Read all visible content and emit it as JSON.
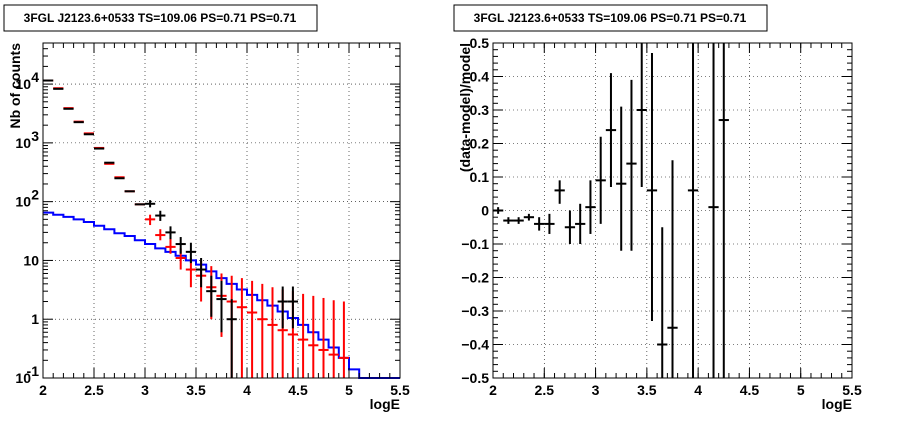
{
  "chart_data": [
    {
      "type": "step-histogram",
      "title": "3FGL J2123.6+0533 TS=109.06 PS=0.71 PS=0.71",
      "xlabel": "logE",
      "ylabel": "Nb of counts",
      "xlim": [
        2,
        5.5
      ],
      "ylim": [
        0.1,
        50000
      ],
      "yscale": "log",
      "grid": true,
      "x_ticks": [
        2,
        2.5,
        3,
        3.5,
        4,
        4.5,
        5,
        5.5
      ],
      "x_tick_labels": [
        "2",
        "2.5",
        "3",
        "3.5",
        "4",
        "4.5",
        "5",
        "5.5"
      ],
      "y_ticks": [
        0.1,
        1,
        10,
        100,
        1000,
        10000
      ],
      "y_tick_labels": [
        {
          "base": "10",
          "exp": "-1"
        },
        {
          "base": "1",
          "exp": ""
        },
        {
          "base": "10",
          "exp": ""
        },
        {
          "base": "10",
          "exp": "2"
        },
        {
          "base": "10",
          "exp": "3"
        },
        {
          "base": "10",
          "exp": "4"
        }
      ],
      "bin_edges": [
        2.0,
        2.1,
        2.2,
        2.3,
        2.4,
        2.5,
        2.6,
        2.7,
        2.8,
        2.9,
        3.0,
        3.1,
        3.2,
        3.3,
        3.4,
        3.5,
        3.6,
        3.7,
        3.8,
        3.9,
        4.0,
        4.1,
        4.2,
        4.3,
        4.4,
        4.5,
        4.6,
        4.7,
        4.8,
        4.9,
        5.0,
        5.1,
        5.2,
        5.3,
        5.4,
        5.5
      ],
      "series": [
        {
          "kind": "step",
          "color": "#0000ff",
          "values": [
            65,
            60,
            55,
            50,
            45,
            39,
            34,
            29,
            26,
            22,
            19,
            16,
            14,
            12,
            10,
            8.5,
            6.5,
            5.0,
            4.0,
            3.2,
            2.6,
            2.1,
            1.7,
            1.35,
            1.05,
            0.8,
            0.6,
            0.45,
            0.33,
            0.22,
            0.14,
            0.1,
            0.1,
            0.1,
            0.1
          ]
        },
        {
          "kind": "errorbar",
          "color": "#ff0000",
          "x": [
            2.05,
            2.15,
            2.25,
            2.35,
            2.45,
            2.55,
            2.65,
            2.75,
            2.85,
            2.95,
            3.05,
            3.15,
            3.25,
            3.35,
            3.45,
            3.55,
            3.65,
            3.75,
            3.85,
            3.95,
            4.05,
            4.15,
            4.25,
            4.35,
            4.45,
            4.55,
            4.65,
            4.75,
            4.85,
            4.95
          ],
          "y": [
            11500,
            8500,
            3900,
            2300,
            1450,
            820,
            440,
            260,
            150,
            90,
            50,
            27,
            17,
            11,
            7,
            5.5,
            3.5,
            2.5,
            2.0,
            1.6,
            1.3,
            1.0,
            0.8,
            0.65,
            0.55,
            0.45,
            0.36,
            0.3,
            0.25,
            0.22
          ],
          "ylo": [
            null,
            null,
            null,
            null,
            null,
            null,
            null,
            null,
            null,
            null,
            40,
            22,
            13,
            7,
            3.5,
            2.0,
            1.0,
            0.5,
            0.1,
            0.1,
            0.1,
            0.1,
            0.1,
            0.1,
            0.1,
            0.1,
            0.1,
            0.1,
            0.1,
            0.1
          ],
          "yhi": [
            null,
            null,
            null,
            null,
            null,
            null,
            null,
            null,
            null,
            null,
            60,
            34,
            24,
            16,
            11,
            10,
            8,
            6,
            5.5,
            5,
            4.5,
            4,
            3.5,
            3.2,
            3,
            2.7,
            2.5,
            2.3,
            2.1,
            2.0
          ]
        },
        {
          "kind": "errorbar",
          "color": "#000000",
          "x": [
            2.05,
            2.15,
            2.25,
            2.35,
            2.45,
            2.55,
            2.65,
            2.75,
            2.85,
            2.95,
            3.05,
            3.15,
            3.25,
            3.35,
            3.45,
            3.55,
            3.65,
            3.75,
            3.85,
            4.35,
            4.45
          ],
          "y": [
            11500,
            8300,
            3800,
            2250,
            1400,
            800,
            460,
            250,
            150,
            90,
            92,
            58,
            30,
            19,
            14,
            7,
            3,
            2.2,
            1.0,
            2.0,
            2.0
          ],
          "ylo": [
            null,
            null,
            null,
            null,
            null,
            null,
            null,
            null,
            null,
            null,
            80,
            47,
            23,
            13,
            9,
            3.5,
            1.1,
            0.6,
            0.1,
            0.7,
            0.7
          ],
          "yhi": [
            null,
            null,
            null,
            null,
            null,
            null,
            null,
            null,
            null,
            null,
            106,
            70,
            38,
            25,
            20,
            11,
            5.5,
            4.5,
            2.2,
            3.6,
            3.6
          ]
        }
      ]
    },
    {
      "type": "errorbar",
      "title": "3FGL J2123.6+0533 TS=109.06 PS=0.71 PS=0.71",
      "xlabel": "logE",
      "ylabel": "(data-model)/model",
      "xlim": [
        2,
        5.5
      ],
      "ylim": [
        -0.5,
        0.5
      ],
      "grid": true,
      "x_ticks": [
        2,
        2.5,
        3,
        3.5,
        4,
        4.5,
        5,
        5.5
      ],
      "x_tick_labels": [
        "2",
        "2.5",
        "3",
        "3.5",
        "4",
        "4.5",
        "5",
        "5.5"
      ],
      "y_ticks": [
        -0.5,
        -0.4,
        -0.3,
        -0.2,
        -0.1,
        0,
        0.1,
        0.2,
        0.3,
        0.4,
        0.5
      ],
      "y_tick_labels": [
        "−0.5",
        "−0.4",
        "−0.3",
        "−0.2",
        "−0.1",
        "0",
        "0.1",
        "0.2",
        "0.3",
        "0.4",
        "0.5"
      ],
      "series": [
        {
          "color": "#000000",
          "x": [
            2.05,
            2.15,
            2.25,
            2.35,
            2.45,
            2.55,
            2.65,
            2.75,
            2.85,
            2.95,
            3.05,
            3.15,
            3.25,
            3.35,
            3.45,
            3.55,
            3.65,
            3.75,
            3.95,
            4.15,
            4.25
          ],
          "y": [
            0.0,
            -0.03,
            -0.03,
            -0.02,
            -0.04,
            -0.04,
            0.06,
            -0.05,
            -0.04,
            0.01,
            0.09,
            0.24,
            0.08,
            0.14,
            0.3,
            0.06,
            -0.4,
            -0.35,
            0.06,
            0.01,
            0.27
          ],
          "ylo": [
            -0.01,
            -0.04,
            -0.04,
            -0.03,
            -0.06,
            -0.07,
            0.02,
            -0.1,
            -0.1,
            -0.07,
            -0.04,
            0.07,
            -0.12,
            -0.12,
            0.07,
            -0.33,
            -0.5,
            -0.5,
            -0.5,
            -0.5,
            -0.5
          ],
          "yhi": [
            0.01,
            -0.02,
            -0.02,
            -0.01,
            -0.02,
            -0.01,
            0.09,
            0.0,
            0.02,
            0.09,
            0.22,
            0.41,
            0.31,
            0.39,
            0.5,
            0.47,
            -0.05,
            0.15,
            0.5,
            0.5,
            0.5
          ]
        }
      ]
    }
  ]
}
